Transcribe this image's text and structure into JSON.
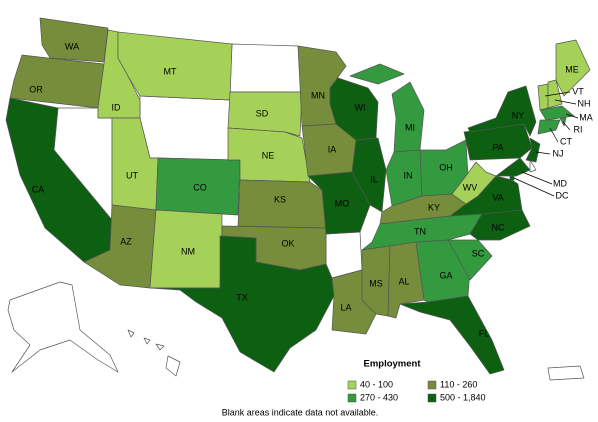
{
  "map": {
    "states": [
      {
        "label": "WA",
        "category": "110 - 260"
      },
      {
        "label": "OR",
        "category": "110 - 260"
      },
      {
        "label": "CA",
        "category": "500 - 1,840"
      },
      {
        "label": "ID",
        "category": "40 - 100"
      },
      {
        "label": "MT",
        "category": "40 - 100"
      },
      {
        "label": "UT",
        "category": "40 - 100"
      },
      {
        "label": "CO",
        "category": "270 - 430"
      },
      {
        "label": "AZ",
        "category": "110 - 260"
      },
      {
        "label": "NM",
        "category": "40 - 100"
      },
      {
        "label": "SD",
        "category": "40 - 100"
      },
      {
        "label": "NE",
        "category": "40 - 100"
      },
      {
        "label": "KS",
        "category": "110 - 260"
      },
      {
        "label": "OK",
        "category": "110 - 260"
      },
      {
        "label": "TX",
        "category": "500 - 1,840"
      },
      {
        "label": "MN",
        "category": "110 - 260"
      },
      {
        "label": "IA",
        "category": "110 - 260"
      },
      {
        "label": "MO",
        "category": "500 - 1,840"
      },
      {
        "label": "LA",
        "category": "110 - 260"
      },
      {
        "label": "WI",
        "category": "500 - 1,840"
      },
      {
        "label": "IL",
        "category": "500 - 1,840"
      },
      {
        "label": "MI",
        "category": "270 - 430"
      },
      {
        "label": "IN",
        "category": "270 - 430"
      },
      {
        "label": "OH",
        "category": "270 - 430"
      },
      {
        "label": "KY",
        "category": "110 - 260"
      },
      {
        "label": "TN",
        "category": "270 - 430"
      },
      {
        "label": "MS",
        "category": "110 - 260"
      },
      {
        "label": "AL",
        "category": "110 - 260"
      },
      {
        "label": "GA",
        "category": "270 - 430"
      },
      {
        "label": "FL",
        "category": "500 - 1,840"
      },
      {
        "label": "SC",
        "category": "270 - 430"
      },
      {
        "label": "NC",
        "category": "500 - 1,840"
      },
      {
        "label": "VA",
        "category": "500 - 1,840"
      },
      {
        "label": "WV",
        "category": "40 - 100"
      },
      {
        "label": "PA",
        "category": "500 - 1,840"
      },
      {
        "label": "NY",
        "category": "500 - 1,840"
      },
      {
        "label": "NJ",
        "category": "500 - 1,840"
      },
      {
        "label": "MD",
        "category": "500 - 1,840"
      },
      {
        "label": "DC",
        "category": "500 - 1,840"
      },
      {
        "label": "VT",
        "category": "40 - 100"
      },
      {
        "label": "NH",
        "category": "40 - 100"
      },
      {
        "label": "ME",
        "category": "40 - 100"
      },
      {
        "label": "MA",
        "category": "270 - 430"
      },
      {
        "label": "RI",
        "category": "270 - 430"
      },
      {
        "label": "CT",
        "category": "270 - 430"
      }
    ],
    "legend": {
      "title": "Employment",
      "items": [
        {
          "label": "40 - 100",
          "color": "#a6d159"
        },
        {
          "label": "110 - 260",
          "color": "#768d3b"
        },
        {
          "label": "270 - 430",
          "color": "#339a3f"
        },
        {
          "label": "500 - 1,840",
          "color": "#0d5f12"
        }
      ]
    },
    "note": "Blank areas indicate data not available."
  }
}
